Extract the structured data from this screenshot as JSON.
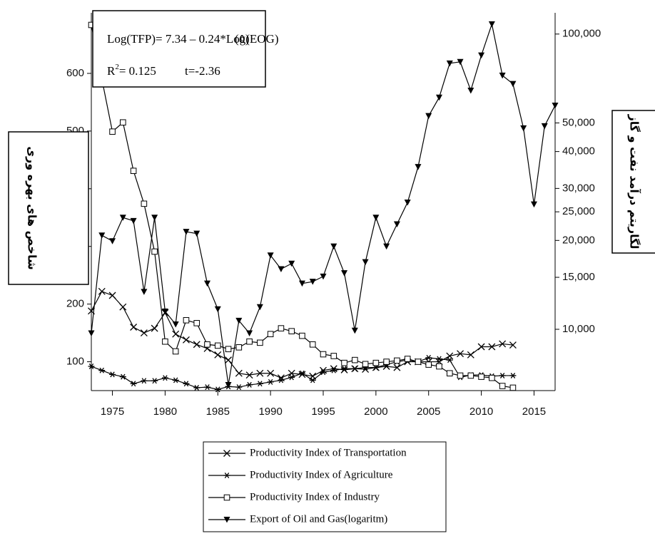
{
  "chart_data": {
    "type": "line",
    "annotations": {
      "equation": "Log(TFP)= 7.34 – 0.24*Log(EOG)",
      "equation_number": "(٥)",
      "r2_base": "R",
      "r2_sup": "2",
      "r2_rest": "= 0.125",
      "t_stat": "t=-2.36"
    },
    "y_label": "شاخص های بهره وری",
    "y2_label": "لگاریتم درآمد نفت و گاز",
    "x": [
      1973,
      1974,
      1975,
      1976,
      1977,
      1978,
      1979,
      1980,
      1981,
      1982,
      1983,
      1984,
      1985,
      1986,
      1987,
      1988,
      1989,
      1990,
      1991,
      1992,
      1993,
      1994,
      1995,
      1996,
      1997,
      1998,
      1999,
      2000,
      2001,
      2002,
      2003,
      2004,
      2005,
      2006,
      2007,
      2008,
      2009,
      2010,
      2011,
      2012,
      2013,
      2014,
      2015,
      2016,
      2017
    ],
    "series": [
      {
        "name": "Productivity Index of Transportation",
        "color": "#000000",
        "marker": "x",
        "values": [
          188,
          222,
          215,
          195,
          160,
          150,
          158,
          185,
          148,
          138,
          130,
          123,
          112,
          103,
          80,
          77,
          80,
          80,
          72,
          80,
          78,
          75,
          85,
          88,
          86,
          88,
          87,
          90,
          92,
          90,
          100,
          100,
          100,
          100,
          110,
          114,
          112,
          126,
          126,
          131,
          129,
          null,
          null,
          null,
          null
        ]
      },
      {
        "name": "Productivity Index of Agriculture",
        "color": "#000000",
        "marker": "star",
        "values": [
          92,
          85,
          78,
          74,
          62,
          67,
          67,
          72,
          68,
          62,
          55,
          56,
          52,
          57,
          56,
          60,
          62,
          65,
          68,
          73,
          80,
          68,
          82,
          85,
          88,
          88,
          90,
          90,
          95,
          100,
          103,
          100,
          107,
          105,
          103,
          73,
          77,
          77,
          75,
          76,
          76,
          null,
          null,
          null,
          null
        ]
      },
      {
        "name": "Productivity Index of Industry",
        "color": "#000000",
        "marker": "square",
        "values": [
          684,
          590,
          499,
          515,
          431,
          374,
          291,
          135,
          118,
          172,
          167,
          130,
          128,
          122,
          125,
          135,
          133,
          148,
          158,
          153,
          145,
          130,
          113,
          110,
          98,
          103,
          96,
          98,
          100,
          102,
          105,
          100,
          95,
          92,
          80,
          76,
          76,
          74,
          72,
          58,
          55,
          null,
          null,
          null,
          null
        ]
      },
      {
        "name": "Export of Oil and Gas(logaritm)",
        "color": "#000000",
        "marker": "triangle-down",
        "axis": "y2",
        "values": [
          9700,
          20800,
          19900,
          23900,
          23300,
          13400,
          23900,
          11500,
          10400,
          21400,
          21100,
          14300,
          11700,
          6480,
          10700,
          9700,
          11900,
          17800,
          16000,
          16700,
          14300,
          14500,
          15100,
          19100,
          15500,
          9900,
          16900,
          23900,
          19100,
          22700,
          26900,
          35500,
          52800,
          61000,
          79600,
          80500,
          64400,
          84700,
          108000,
          72400,
          67800,
          48000,
          26500,
          48800,
          57300
        ]
      }
    ],
    "xlim": [
      1973,
      2017
    ],
    "xticks": [
      1975,
      1980,
      1985,
      1990,
      1995,
      2000,
      2005,
      2010,
      2015
    ],
    "ylim": [
      50,
      705
    ],
    "yticks": [
      100,
      200,
      300,
      400,
      500,
      600
    ],
    "y2lim": [
      6200,
      118000
    ],
    "y2log": true,
    "y2ticks": [
      {
        "value": 10000,
        "label": "10,000"
      },
      {
        "value": 15000,
        "label": "15,000"
      },
      {
        "value": 20000,
        "label": "20,000"
      },
      {
        "value": 25000,
        "label": "25,000"
      },
      {
        "value": 30000,
        "label": "30,000"
      },
      {
        "value": 40000,
        "label": "40,000"
      },
      {
        "value": 50000,
        "label": "50,000"
      },
      {
        "value": 100000,
        "label": "100,000"
      }
    ],
    "grid": false,
    "legend": "bottom"
  }
}
